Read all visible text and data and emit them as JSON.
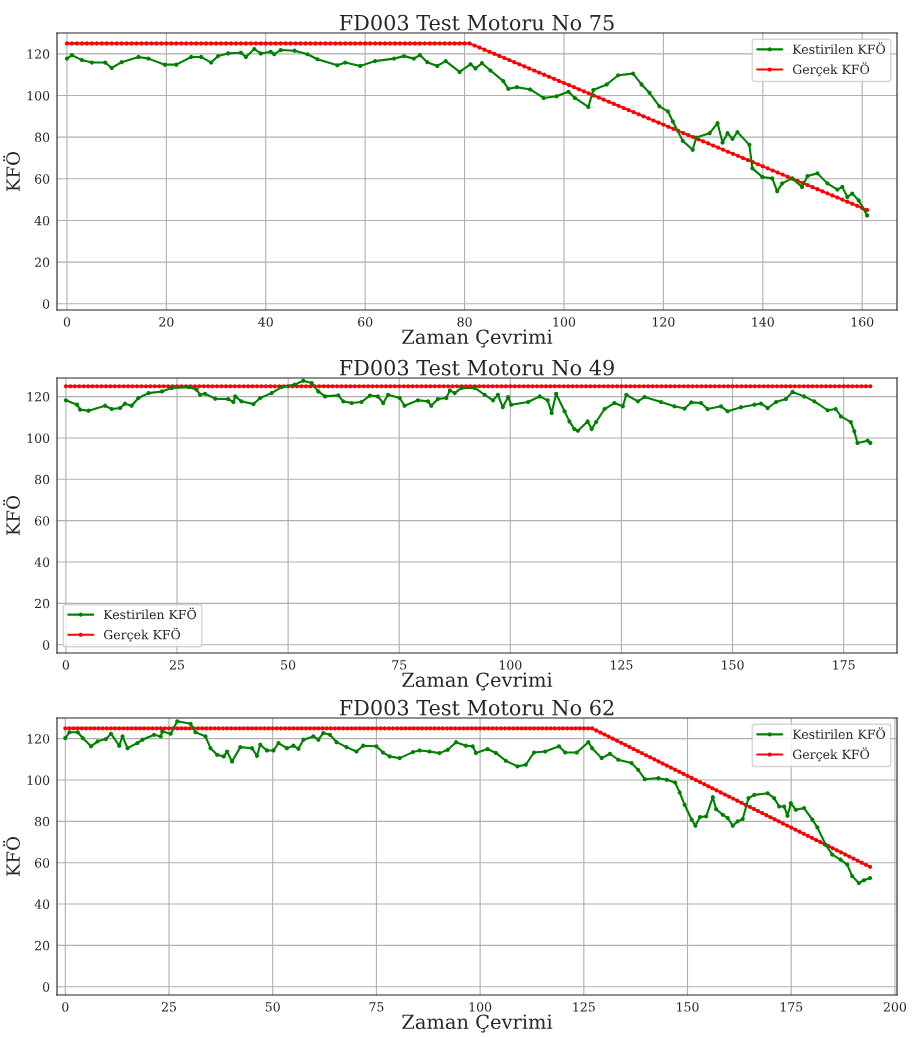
{
  "chart_data": [
    {
      "type": "line",
      "title": "FD003 Test Motoru No 75",
      "xlabel": "Zaman Çevrimi",
      "ylabel": "KFÖ",
      "xlim": [
        -2,
        167
      ],
      "ylim": [
        -3,
        130
      ],
      "xticks": [
        0,
        20,
        40,
        60,
        80,
        100,
        120,
        140,
        160
      ],
      "yticks": [
        0,
        20,
        40,
        60,
        80,
        100,
        120
      ],
      "grid": true,
      "legend": "top right",
      "marker": "circle",
      "line_style": "solid",
      "series": [
        {
          "name": "Kestirilen KFÖ",
          "color": "#008000",
          "x": [
            0,
            1,
            3,
            5,
            7.7,
            9,
            11,
            14.4,
            16.4,
            19.7,
            22,
            25,
            27,
            29,
            30.4,
            32.4,
            35,
            36,
            37.7,
            39,
            41,
            41.7,
            43,
            45.8,
            48.4,
            50.4,
            54.4,
            56,
            59,
            62,
            65.8,
            67.8,
            69.8,
            71,
            72.5,
            74.5,
            76.2,
            79,
            81.2,
            82.2,
            83.5,
            85.2,
            87.8,
            88.8,
            90.5,
            93.2,
            95.9,
            98.5,
            100.9,
            102.2,
            104.9,
            105.9,
            108.6,
            110.9,
            113.9,
            115.6,
            117.2,
            119.2,
            120.9,
            121.9,
            123.9,
            125.9,
            126.6,
            129.3,
            130.9,
            131.9,
            132.9,
            133.9,
            134.9,
            137.3,
            137.9,
            139.9,
            141.9,
            142.9,
            143.9,
            145.9,
            147.9,
            149,
            151,
            153,
            155,
            156,
            157,
            158,
            159.3,
            161
          ],
          "values": [
            117.7,
            119.4,
            117,
            115.8,
            115.8,
            113.2,
            116,
            118.5,
            117.7,
            114.8,
            114.8,
            118.5,
            118.5,
            115.8,
            118.9,
            120.2,
            120.5,
            118.5,
            122.3,
            120.2,
            121,
            119.8,
            121.8,
            121.5,
            119.8,
            117.4,
            114.5,
            115.8,
            114.2,
            116.5,
            117.7,
            118.9,
            117.7,
            119.4,
            116,
            114.2,
            116.5,
            111.3,
            115,
            113,
            115.5,
            112,
            106.9,
            103.2,
            104,
            102.9,
            98.8,
            99.6,
            101.8,
            98.8,
            94.5,
            102.6,
            105.3,
            109.7,
            110.5,
            105.3,
            101.3,
            94.8,
            92.4,
            87.5,
            78.2,
            73.9,
            79.8,
            81.9,
            86.7,
            77.4,
            81.9,
            79.2,
            82.4,
            76.3,
            65,
            60.9,
            60.2,
            54,
            57.8,
            60.2,
            56.1,
            61.3,
            62.6,
            57.8,
            54.8,
            56.1,
            51.3,
            52.9,
            49.6,
            42.4
          ]
        },
        {
          "name": "Gerçek KFÖ",
          "color": "#ff0000",
          "x": [
            0,
            1,
            2,
            3,
            4,
            5,
            6,
            7,
            8,
            9,
            10,
            11,
            12,
            13,
            14,
            15,
            16,
            17,
            18,
            19,
            20,
            21,
            22,
            23,
            24,
            25,
            26,
            27,
            28,
            29,
            30,
            31,
            32,
            33,
            34,
            35,
            36,
            37,
            38,
            39,
            40,
            41,
            42,
            43,
            44,
            45,
            46,
            47,
            48,
            49,
            50,
            51,
            52,
            53,
            54,
            55,
            56,
            57,
            58,
            59,
            60,
            61,
            62,
            63,
            64,
            65,
            66,
            67,
            68,
            69,
            70,
            71,
            72,
            73,
            74,
            75,
            76,
            77,
            78,
            79,
            80,
            81,
            82,
            83,
            84,
            85,
            86,
            87,
            88,
            89,
            90,
            91,
            92,
            93,
            94,
            95,
            96,
            97,
            98,
            99,
            100,
            101,
            102,
            103,
            104,
            105,
            106,
            107,
            108,
            109,
            110,
            111,
            112,
            113,
            114,
            115,
            116,
            117,
            118,
            119,
            120,
            121,
            122,
            123,
            124,
            125,
            126,
            127,
            128,
            129,
            130,
            131,
            132,
            133,
            134,
            135,
            136,
            137,
            138,
            139,
            140,
            141,
            142,
            143,
            144,
            145,
            146,
            147,
            148,
            149,
            150,
            151,
            152,
            153,
            154,
            155,
            156,
            157,
            158,
            159,
            160,
            161
          ],
          "values": [
            125,
            125,
            125,
            125,
            125,
            125,
            125,
            125,
            125,
            125,
            125,
            125,
            125,
            125,
            125,
            125,
            125,
            125,
            125,
            125,
            125,
            125,
            125,
            125,
            125,
            125,
            125,
            125,
            125,
            125,
            125,
            125,
            125,
            125,
            125,
            125,
            125,
            125,
            125,
            125,
            125,
            125,
            125,
            125,
            125,
            125,
            125,
            125,
            125,
            125,
            125,
            125,
            125,
            125,
            125,
            125,
            125,
            125,
            125,
            125,
            125,
            125,
            125,
            125,
            125,
            125,
            125,
            125,
            125,
            125,
            125,
            125,
            125,
            125,
            125,
            125,
            125,
            125,
            125,
            125,
            125,
            125,
            124,
            123,
            122,
            121,
            120,
            119,
            118,
            117,
            116,
            115,
            114,
            113,
            112,
            111,
            110,
            109,
            108,
            107,
            106,
            105,
            104,
            103,
            102,
            101,
            100,
            99,
            98,
            97,
            96,
            95,
            94,
            93,
            92,
            91,
            90,
            89,
            88,
            87,
            86,
            85,
            84,
            83,
            82,
            81,
            80,
            79,
            78,
            77,
            76,
            75,
            74,
            73,
            72,
            71,
            70,
            69,
            68,
            67,
            66,
            65,
            64,
            63,
            62,
            61,
            60,
            59,
            58,
            57,
            56,
            55,
            54,
            53,
            52,
            51,
            50,
            49,
            48,
            47,
            46,
            45
          ]
        }
      ]
    },
    {
      "type": "line",
      "title": "FD003 Test Motoru No 49",
      "xlabel": "Zaman Çevrimi",
      "ylabel": "KFÖ",
      "xlim": [
        -2,
        187
      ],
      "ylim": [
        -4,
        129
      ],
      "xticks": [
        0,
        25,
        50,
        75,
        100,
        125,
        150,
        175
      ],
      "yticks": [
        0,
        20,
        40,
        60,
        80,
        100,
        120
      ],
      "grid": true,
      "legend": "bottom left",
      "marker": "circle",
      "line_style": "solid",
      "series": [
        {
          "name": "Kestirilen KFÖ",
          "color": "#008000",
          "x": [
            0,
            2.5,
            3.2,
            5.1,
            8.8,
            10.3,
            12.2,
            13.3,
            14.8,
            16.3,
            18.6,
            21.6,
            23.8,
            27.6,
            29.4,
            30.2,
            31.3,
            33.6,
            36.5,
            37.7,
            38.1,
            39.5,
            42.2,
            43.7,
            46.3,
            48.5,
            51.5,
            53.4,
            55.3,
            56.8,
            58.3,
            61.3,
            62.4,
            64.3,
            66.5,
            68.4,
            70.2,
            71.4,
            72.5,
            75.1,
            76.2,
            79.2,
            81.5,
            82.2,
            83.7,
            85.6,
            86.4,
            87.5,
            89,
            92,
            94.2,
            96.1,
            97.2,
            98.3,
            99.5,
            100.2,
            104,
            106.6,
            108.4,
            109.3,
            110.3,
            112.2,
            113.3,
            114.4,
            115.2,
            117.4,
            118.3,
            119.3,
            121.2,
            123.4,
            125.3,
            126.1,
            128.7,
            130.2,
            133.9,
            136.9,
            139.2,
            140.7,
            142.9,
            144.4,
            147.4,
            148.9,
            151.9,
            154.9,
            156.4,
            157.9,
            159.8,
            162,
            163.5,
            166.1,
            168.4,
            171.4,
            173.2,
            174.4,
            176.6,
            177.4,
            178.1,
            180.4,
            181
          ],
          "values": [
            118.2,
            116.1,
            113.7,
            113.2,
            115.6,
            114,
            114.5,
            116.6,
            115.6,
            119.3,
            121.7,
            122.5,
            124.2,
            124.6,
            123.4,
            120.9,
            121.4,
            119,
            118.8,
            117.4,
            120.1,
            117.7,
            116.4,
            119.3,
            121.7,
            124.6,
            125.8,
            127.7,
            126.6,
            122.5,
            120.1,
            120.6,
            117.7,
            116.9,
            117.4,
            120.5,
            120.1,
            116.9,
            120.9,
            119.3,
            115.6,
            118.2,
            117.7,
            115.6,
            118.8,
            119.3,
            123,
            121.7,
            124.2,
            124.2,
            120.9,
            118.2,
            120.9,
            114.9,
            119.8,
            116.1,
            117.4,
            120.1,
            118.2,
            112.1,
            121.4,
            112.9,
            108,
            104.3,
            103.5,
            108,
            104.3,
            107.7,
            114,
            116.9,
            115.3,
            120.9,
            117.7,
            119.8,
            117.4,
            115.3,
            114.2,
            117.2,
            116.9,
            114,
            115.3,
            112.9,
            114.9,
            116.1,
            116.6,
            114.5,
            117.4,
            118.8,
            122.3,
            120.1,
            117.7,
            113.4,
            114,
            110.4,
            107.7,
            103.2,
            97.6,
            98.7,
            97.6
          ]
        },
        {
          "name": "Gerçek KFÖ",
          "color": "#ff0000",
          "x": [
            0,
            1,
            2,
            3,
            4,
            5,
            6,
            7,
            8,
            9,
            10,
            11,
            12,
            13,
            14,
            15,
            16,
            17,
            18,
            19,
            20,
            21,
            22,
            23,
            24,
            25,
            26,
            27,
            28,
            29,
            30,
            31,
            32,
            33,
            34,
            35,
            36,
            37,
            38,
            39,
            40,
            41,
            42,
            43,
            44,
            45,
            46,
            47,
            48,
            49,
            50,
            51,
            52,
            53,
            54,
            55,
            56,
            57,
            58,
            59,
            60,
            61,
            62,
            63,
            64,
            65,
            66,
            67,
            68,
            69,
            70,
            71,
            72,
            73,
            74,
            75,
            76,
            77,
            78,
            79,
            80,
            81,
            82,
            83,
            84,
            85,
            86,
            87,
            88,
            89,
            90,
            91,
            92,
            93,
            94,
            95,
            96,
            97,
            98,
            99,
            100,
            101,
            102,
            103,
            104,
            105,
            106,
            107,
            108,
            109,
            110,
            111,
            112,
            113,
            114,
            115,
            116,
            117,
            118,
            119,
            120,
            121,
            122,
            123,
            124,
            125,
            126,
            127,
            128,
            129,
            130,
            131,
            132,
            133,
            134,
            135,
            136,
            137,
            138,
            139,
            140,
            141,
            142,
            143,
            144,
            145,
            146,
            147,
            148,
            149,
            150,
            151,
            152,
            153,
            154,
            155,
            156,
            157,
            158,
            159,
            160,
            161,
            162,
            163,
            164,
            165,
            166,
            167,
            168,
            169,
            170,
            171,
            172,
            173,
            174,
            175,
            176,
            177,
            178,
            179,
            180,
            181
          ],
          "values": [
            125,
            125,
            125,
            125,
            125,
            125,
            125,
            125,
            125,
            125,
            125,
            125,
            125,
            125,
            125,
            125,
            125,
            125,
            125,
            125,
            125,
            125,
            125,
            125,
            125,
            125,
            125,
            125,
            125,
            125,
            125,
            125,
            125,
            125,
            125,
            125,
            125,
            125,
            125,
            125,
            125,
            125,
            125,
            125,
            125,
            125,
            125,
            125,
            125,
            125,
            125,
            125,
            125,
            125,
            125,
            125,
            125,
            125,
            125,
            125,
            125,
            125,
            125,
            125,
            125,
            125,
            125,
            125,
            125,
            125,
            125,
            125,
            125,
            125,
            125,
            125,
            125,
            125,
            125,
            125,
            125,
            125,
            125,
            125,
            125,
            125,
            125,
            125,
            125,
            125,
            125,
            125,
            125,
            125,
            125,
            125,
            125,
            125,
            125,
            125,
            125,
            125,
            125,
            125,
            125,
            125,
            125,
            125,
            125,
            125,
            125,
            125,
            125,
            125,
            125,
            125,
            125,
            125,
            125,
            125,
            125,
            125,
            125,
            125,
            125,
            125,
            125,
            125,
            125,
            125,
            125,
            125,
            125,
            125,
            125,
            125,
            125,
            125,
            125,
            125,
            125,
            125,
            125,
            125,
            125,
            125,
            125,
            125,
            125,
            125,
            125,
            125,
            125,
            125,
            125,
            125,
            125,
            125,
            125,
            125,
            125,
            125,
            125,
            125,
            125,
            125,
            125,
            125,
            125,
            125,
            125,
            125,
            125,
            125,
            125,
            125,
            125,
            125,
            125,
            125,
            125,
            125
          ]
        }
      ]
    },
    {
      "type": "line",
      "title": "FD003 Test Motoru No 62",
      "xlabel": "Zaman Çevrimi",
      "ylabel": "KFÖ",
      "xlim": [
        -2,
        200.5
      ],
      "ylim": [
        -4,
        130
      ],
      "xticks": [
        0,
        25,
        50,
        75,
        100,
        125,
        150,
        175,
        200
      ],
      "yticks": [
        0,
        20,
        40,
        60,
        80,
        100,
        120
      ],
      "grid": true,
      "legend": "top right",
      "marker": "circle",
      "line_style": "solid",
      "series": [
        {
          "name": "Kestirilen KFÖ",
          "color": "#008000",
          "x": [
            0,
            1,
            3,
            4.2,
            6.2,
            7.8,
            9.8,
            11,
            13,
            13.8,
            15,
            17.4,
            18.6,
            21.4,
            23,
            23.4,
            25.4,
            27,
            30.2,
            31.4,
            33.8,
            35,
            36.6,
            38.2,
            39,
            40.2,
            42.2,
            45,
            46.2,
            47,
            48.6,
            50.2,
            51.4,
            53.4,
            55,
            56.2,
            57.4,
            59.8,
            61,
            62.2,
            63.8,
            65.4,
            67.8,
            70.2,
            71.8,
            75,
            76.6,
            78.2,
            80.6,
            83.8,
            85.4,
            87.8,
            90.2,
            92.2,
            94.2,
            96.6,
            98.2,
            99,
            101.8,
            103.8,
            106.2,
            109,
            111,
            113,
            115.7,
            119,
            120.5,
            123.3,
            126.1,
            127,
            129.3,
            131.3,
            133.3,
            136.5,
            138.1,
            139.7,
            143,
            145,
            147,
            148.1,
            149.3,
            151,
            151.9,
            153,
            154.5,
            156.1,
            156.9,
            158.5,
            159.7,
            160.9,
            162.1,
            163.3,
            164.7,
            166.1,
            169.3,
            170.9,
            172.1,
            173.3,
            174.1,
            174.9,
            176.1,
            178.1,
            180.1,
            181.3,
            183.3,
            184.9,
            186.9,
            188.5,
            189.7,
            191.3,
            192.5,
            194
          ],
          "values": [
            120.3,
            123.1,
            123.1,
            120.3,
            116.3,
            118.7,
            119.8,
            122.4,
            116.6,
            121.1,
            115.4,
            117.9,
            119.5,
            121.9,
            121.1,
            123.5,
            122.4,
            128.4,
            127.2,
            123.1,
            121.1,
            115.4,
            112.2,
            111.4,
            113.8,
            109,
            115.9,
            115.4,
            111.7,
            117.1,
            114.3,
            114.3,
            117.9,
            115.4,
            116.6,
            115.1,
            119.5,
            121.1,
            119.5,
            122.7,
            121.9,
            118.3,
            115.9,
            113.8,
            116.6,
            116.3,
            113.3,
            111.4,
            110.6,
            113.5,
            114.3,
            113.8,
            113,
            114.6,
            118.3,
            116.6,
            116.3,
            113.1,
            115,
            113.1,
            109.3,
            106.6,
            107.4,
            113.3,
            113.8,
            116.3,
            113.3,
            113.3,
            118.3,
            115.4,
            110.6,
            112.7,
            109.8,
            108.2,
            104.9,
            100.4,
            100.9,
            100.1,
            98.8,
            94,
            88,
            80.8,
            77.9,
            82.1,
            82.4,
            91.7,
            85.9,
            83.2,
            81.6,
            77.9,
            80,
            81.1,
            91.2,
            92.8,
            93.6,
            91.2,
            87.2,
            87.2,
            82.7,
            88.8,
            85.6,
            86.4,
            80.8,
            77.1,
            68.7,
            63.9,
            61.5,
            59.1,
            53.5,
            50.2,
            51.5,
            52.6
          ]
        },
        {
          "name": "Gerçek KFÖ",
          "color": "#ff0000",
          "x": [
            0,
            1,
            2,
            3,
            4,
            5,
            6,
            7,
            8,
            9,
            10,
            11,
            12,
            13,
            14,
            15,
            16,
            17,
            18,
            19,
            20,
            21,
            22,
            23,
            24,
            25,
            26,
            27,
            28,
            29,
            30,
            31,
            32,
            33,
            34,
            35,
            36,
            37,
            38,
            39,
            40,
            41,
            42,
            43,
            44,
            45,
            46,
            47,
            48,
            49,
            50,
            51,
            52,
            53,
            54,
            55,
            56,
            57,
            58,
            59,
            60,
            61,
            62,
            63,
            64,
            65,
            66,
            67,
            68,
            69,
            70,
            71,
            72,
            73,
            74,
            75,
            76,
            77,
            78,
            79,
            80,
            81,
            82,
            83,
            84,
            85,
            86,
            87,
            88,
            89,
            90,
            91,
            92,
            93,
            94,
            95,
            96,
            97,
            98,
            99,
            100,
            101,
            102,
            103,
            104,
            105,
            106,
            107,
            108,
            109,
            110,
            111,
            112,
            113,
            114,
            115,
            116,
            117,
            118,
            119,
            120,
            121,
            122,
            123,
            124,
            125,
            126,
            127,
            128,
            129,
            130,
            131,
            132,
            133,
            134,
            135,
            136,
            137,
            138,
            139,
            140,
            141,
            142,
            143,
            144,
            145,
            146,
            147,
            148,
            149,
            150,
            151,
            152,
            153,
            154,
            155,
            156,
            157,
            158,
            159,
            160,
            161,
            162,
            163,
            164,
            165,
            166,
            167,
            168,
            169,
            170,
            171,
            172,
            173,
            174,
            175,
            176,
            177,
            178,
            179,
            180,
            181,
            182,
            183,
            184,
            185,
            186,
            187,
            188,
            189,
            190,
            191,
            192,
            193,
            194
          ],
          "values": [
            125,
            125,
            125,
            125,
            125,
            125,
            125,
            125,
            125,
            125,
            125,
            125,
            125,
            125,
            125,
            125,
            125,
            125,
            125,
            125,
            125,
            125,
            125,
            125,
            125,
            125,
            125,
            125,
            125,
            125,
            125,
            125,
            125,
            125,
            125,
            125,
            125,
            125,
            125,
            125,
            125,
            125,
            125,
            125,
            125,
            125,
            125,
            125,
            125,
            125,
            125,
            125,
            125,
            125,
            125,
            125,
            125,
            125,
            125,
            125,
            125,
            125,
            125,
            125,
            125,
            125,
            125,
            125,
            125,
            125,
            125,
            125,
            125,
            125,
            125,
            125,
            125,
            125,
            125,
            125,
            125,
            125,
            125,
            125,
            125,
            125,
            125,
            125,
            125,
            125,
            125,
            125,
            125,
            125,
            125,
            125,
            125,
            125,
            125,
            125,
            125,
            125,
            125,
            125,
            125,
            125,
            125,
            125,
            125,
            125,
            125,
            125,
            125,
            125,
            125,
            125,
            125,
            125,
            125,
            125,
            125,
            125,
            125,
            125,
            125,
            125,
            125,
            125,
            124,
            123,
            122,
            121,
            120,
            119,
            118,
            117,
            116,
            115,
            114,
            113,
            112,
            111,
            110,
            109,
            108,
            107,
            106,
            105,
            104,
            103,
            102,
            101,
            100,
            99,
            98,
            97,
            96,
            95,
            94,
            93,
            92,
            91,
            90,
            89,
            88,
            87,
            86,
            85,
            84,
            83,
            82,
            81,
            80,
            79,
            78,
            77,
            76,
            75,
            74,
            73,
            72,
            71,
            70,
            69,
            68,
            67,
            66,
            65,
            64,
            63,
            62,
            61,
            60,
            59,
            58
          ]
        }
      ]
    }
  ]
}
